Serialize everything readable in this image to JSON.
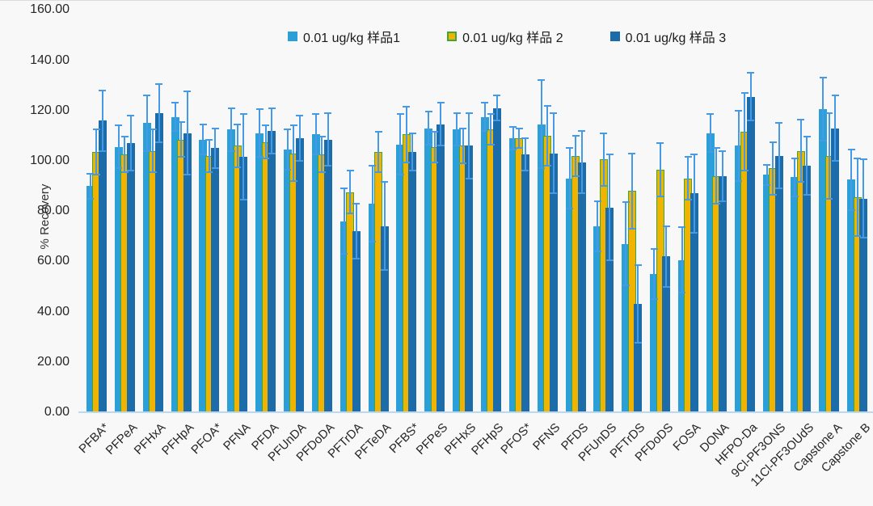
{
  "chart_data": {
    "type": "bar",
    "title": "",
    "xlabel": "",
    "ylabel": "% Recovery",
    "ylim": [
      0,
      160
    ],
    "ytick_step": 20,
    "ytick_labels": [
      "0.00",
      "20.00",
      "40.00",
      "60.00",
      "80.00",
      "100.00",
      "120.00",
      "140.00",
      "160.00"
    ],
    "grid": false,
    "legend_position": "top-center",
    "error_bars": true,
    "error_bar_color": "#4699e4",
    "axis_line_color": "#bdd7ee",
    "background_color": "#f8f8f8",
    "categories": [
      "PFBA*",
      "PFPeA",
      "PFHxA",
      "PFHpA",
      "PFOA*",
      "PFNA",
      "PFDA",
      "PFUnDA",
      "PFDoDA",
      "PFTrDA",
      "PFTeDA",
      "PFBS*",
      "PFPeS",
      "PFHxS",
      "PFHpS",
      "PFOS*",
      "PFNS",
      "PFDS",
      "PFUnDS",
      "PFTrDS",
      "PFDoDS",
      "FOSA",
      "DONA",
      "HFPO-Da",
      "9Cl-PF3ONS",
      "11Cl-PF3OUdS",
      "Capstone A",
      "Capstone B"
    ],
    "series": [
      {
        "name": "0.01 ug/kg 样品1",
        "color": "#2b9fd8",
        "values": [
          90,
          105.5,
          115,
          117.5,
          108.5,
          112.5,
          111,
          104.5,
          110.5,
          76,
          83,
          106.5,
          113,
          112.5,
          117.5,
          109,
          114.5,
          93,
          74,
          67,
          55,
          60.5,
          111,
          106,
          94.5,
          93.5,
          120.5,
          92.5
        ],
        "errors": [
          5,
          8.5,
          11,
          5.5,
          6,
          8.5,
          9.5,
          8,
          8,
          13,
          15,
          12,
          6.5,
          6.5,
          5.5,
          4.5,
          17.5,
          12,
          10,
          16.5,
          10,
          13,
          7.5,
          14,
          4,
          7.5,
          12.5,
          12
        ]
      },
      {
        "name": "0.01 ug/kg 样品 2",
        "color": "#f0b400",
        "border_color": "#3fa63c",
        "values": [
          103.5,
          102.5,
          104,
          108.5,
          102,
          106,
          107.5,
          103,
          102.5,
          87.5,
          103.5,
          110.5,
          105.5,
          106,
          112.5,
          109,
          110,
          102,
          100.5,
          88,
          96.5,
          93,
          94,
          111.5,
          97,
          104,
          102,
          85.5
        ],
        "errors": [
          9,
          7,
          8.5,
          7,
          6.5,
          8.5,
          6.5,
          11,
          7,
          8.5,
          8,
          11,
          6,
          7,
          6,
          4,
          12,
          8,
          10.5,
          15,
          10.5,
          8.5,
          11,
          15.5,
          10.5,
          12.5,
          17,
          15.5
        ]
      },
      {
        "name": "0.01 ug/kg 样品 3",
        "color": "#1b6ca8",
        "values": [
          116,
          107,
          119,
          111,
          105,
          101.5,
          112,
          109,
          108.5,
          72,
          74,
          103.5,
          114.5,
          106,
          121,
          102.5,
          103,
          99.5,
          81.5,
          43,
          62,
          87,
          94,
          125.5,
          102,
          98,
          113,
          85
        ],
        "errors": [
          12,
          11,
          11.5,
          16.5,
          8,
          17,
          9,
          9,
          10.5,
          11,
          17.5,
          7.5,
          8.5,
          13,
          5,
          6.5,
          16,
          12.5,
          21,
          15.5,
          12,
          15.5,
          10,
          9.5,
          13,
          11.5,
          13,
          15.5
        ]
      }
    ]
  }
}
